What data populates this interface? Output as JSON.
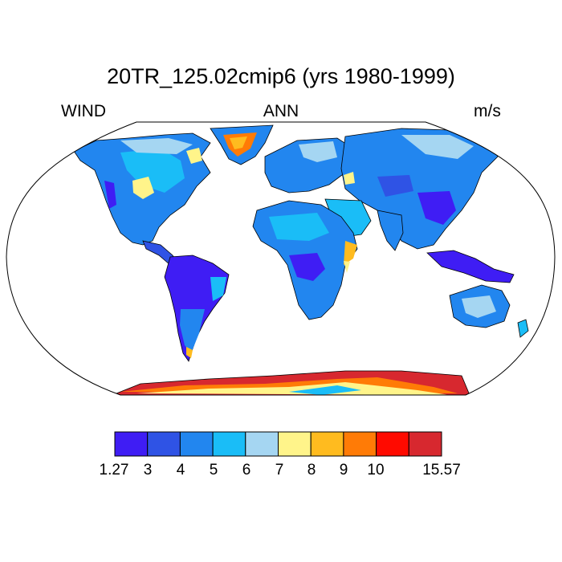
{
  "title": "20TR_125.02cmip6 (yrs 1980-1999)",
  "left_label": "WIND",
  "center_label": "ANN",
  "right_label": "m/s",
  "colorbar": {
    "colors": [
      "#3f1df4",
      "#2f53e5",
      "#2286ef",
      "#1abdf7",
      "#a5d6f2",
      "#fff48a",
      "#ffbb1f",
      "#ff7b06",
      "#ff0a00",
      "#d7282f"
    ],
    "labels": [
      "1.27",
      "3",
      "4",
      "5",
      "6",
      "7",
      "8",
      "9",
      "10",
      "15.57"
    ]
  },
  "colors": {
    "land_outline": "#000000",
    "frame": "#000000"
  }
}
